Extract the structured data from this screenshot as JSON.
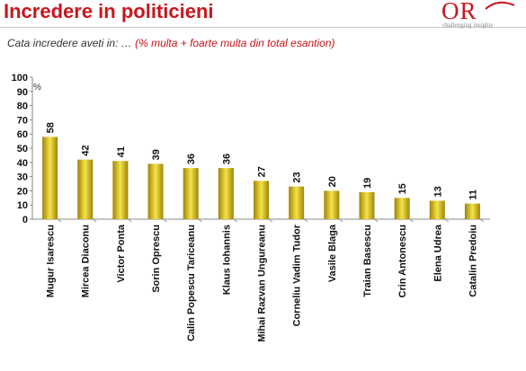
{
  "header": {
    "title": "Incredere in politicieni",
    "logo_text": "OR",
    "logo_tagline": "challenging insights"
  },
  "subtitle": {
    "question": "Cata incredere aveti in: …",
    "note": "(% multa + foarte multa din  total esantion)"
  },
  "colors": {
    "title": "#c8161d",
    "bar_light": "#f4e44a",
    "bar_dark": "#a08408"
  },
  "chart_data": {
    "type": "bar",
    "title": "",
    "xlabel": "",
    "ylabel": "%",
    "ylim": [
      0,
      100
    ],
    "yticks": [
      0,
      10,
      20,
      30,
      40,
      50,
      60,
      70,
      80,
      90,
      100
    ],
    "grid": false,
    "categories": [
      "Mugur Isarescu",
      "Mircea Diaconu",
      "Victor Ponta",
      "Sorin Oprescu",
      "Calin Popescu Tariceanu",
      "Klaus Iohannis",
      "Mihai Razvan Ungureanu",
      "Corneliu Vadim Tudor",
      "Vasile Blaga",
      "Traian Basescu",
      "Crin Antonescu",
      "Elena Udrea",
      "Catalin Predoiu"
    ],
    "values": [
      58,
      42,
      41,
      39,
      36,
      36,
      27,
      23,
      20,
      19,
      15,
      13,
      11
    ]
  }
}
